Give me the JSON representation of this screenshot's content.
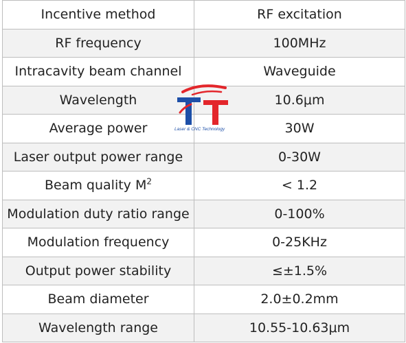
{
  "specs": [
    {
      "param": "Incentive method",
      "value": "RF excitation"
    },
    {
      "param": "RF frequency",
      "value": "100MHz"
    },
    {
      "param": "Intracavity beam channel",
      "value": "Waveguide"
    },
    {
      "param": "Wavelength",
      "value": "10.6μm"
    },
    {
      "param": "Average power",
      "value": "30W"
    },
    {
      "param": "Laser output power range",
      "value": "0-30W"
    },
    {
      "param": "Beam quality M",
      "param_sup": "2",
      "value": "< 1.2"
    },
    {
      "param": "Modulation duty ratio range",
      "value": "0-100%"
    },
    {
      "param": "Modulation frequency",
      "value": "0-25KHz"
    },
    {
      "param": "Output power stability",
      "value": "≤±1.5%"
    },
    {
      "param": "Beam diameter",
      "value": "2.0±0.2mm"
    },
    {
      "param": "Wavelength range",
      "value": "10.55-10.63μm"
    }
  ],
  "watermark": {
    "letters": "TT",
    "caption": "Laser & CNC Technology",
    "colors": {
      "red": "#e3262b",
      "blue": "#1d4fa8"
    }
  }
}
